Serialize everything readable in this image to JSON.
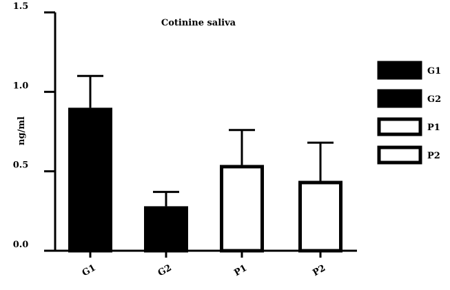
{
  "chart_data": {
    "type": "bar",
    "title": "Cotinine saliva",
    "xlabel": "",
    "ylabel": "ng/ml",
    "ylim": [
      0,
      1.5
    ],
    "yticks": [
      "0.0",
      "0.5",
      "1.0",
      "1.5"
    ],
    "ytick_values": [
      0,
      0.5,
      1.0,
      1.5
    ],
    "categories": [
      "G1",
      "G2",
      "P1",
      "P2"
    ],
    "values": [
      0.9,
      0.28,
      0.54,
      0.44
    ],
    "error_upper": [
      1.1,
      0.37,
      0.76,
      0.68
    ],
    "fills": [
      "#000000",
      "#000000",
      "#ffffff",
      "#ffffff"
    ],
    "grid": false,
    "legend": {
      "placement": "right",
      "entries": [
        {
          "label": "G1",
          "fill": "#000000"
        },
        {
          "label": "G2",
          "fill": "#000000"
        },
        {
          "label": "P1",
          "fill": "#ffffff"
        },
        {
          "label": "P2",
          "fill": "#ffffff"
        }
      ]
    }
  }
}
